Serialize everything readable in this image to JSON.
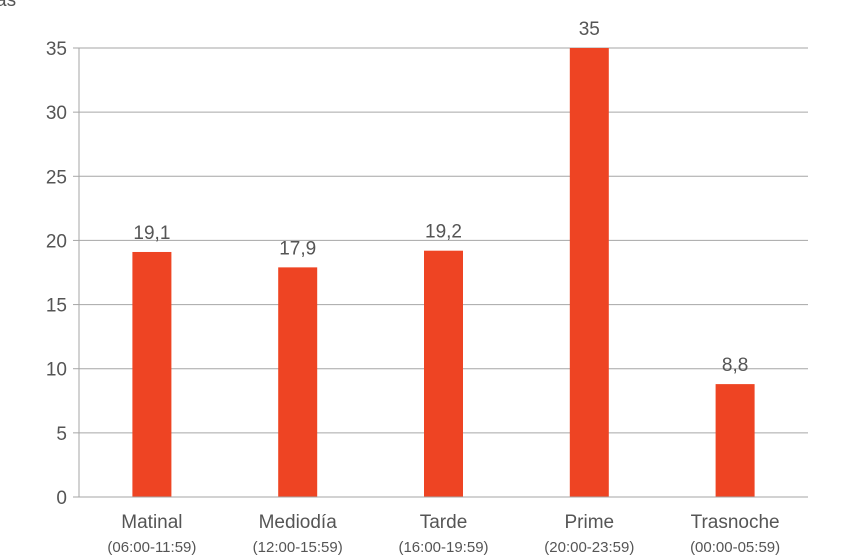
{
  "chart_data": {
    "type": "bar",
    "title": "",
    "xlabel": "",
    "ylabel": "",
    "ylim": [
      0,
      35
    ],
    "yticks": [
      0,
      5,
      10,
      15,
      20,
      25,
      30,
      35
    ],
    "ytick_labels": [
      "0",
      "5",
      "10",
      "15",
      "20",
      "25",
      "30",
      "35"
    ],
    "grid": true,
    "legend": "none",
    "bar_color": "#ee4423",
    "categories": [
      "Matinal",
      "Mediodía",
      "Tarde",
      "Prime",
      "Trasnoche"
    ],
    "category_ranges": [
      "(06:00-11:59)",
      "(12:00-15:59)",
      "(16:00-19:59)",
      "(20:00-23:59)",
      "(00:00-05:59)"
    ],
    "values": [
      19.1,
      17.9,
      19.2,
      35,
      8.8
    ],
    "data_labels": [
      "19,1",
      "17,9",
      "19,2",
      "35",
      "8,8"
    ],
    "corner_fragment": "as"
  }
}
